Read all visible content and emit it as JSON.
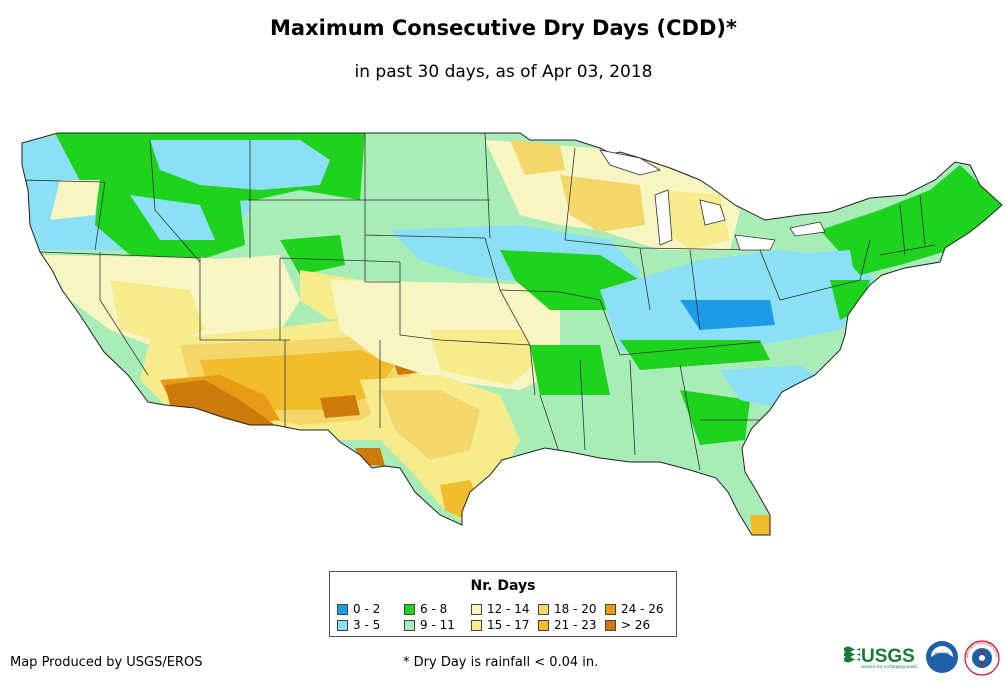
{
  "title": "Maximum Consecutive Dry Days (CDD)*",
  "subtitle": "in past 30 days, as of Apr 03, 2018",
  "legend": {
    "title": "Nr. Days",
    "items": [
      {
        "label": "0 - 2",
        "color": "#1e9be8"
      },
      {
        "label": "3 - 5",
        "color": "#8be0f5"
      },
      {
        "label": "6 - 8",
        "color": "#1ed21e"
      },
      {
        "label": "9 - 11",
        "color": "#a8edb8"
      },
      {
        "label": "12 - 14",
        "color": "#f7f6c3"
      },
      {
        "label": "15 - 17",
        "color": "#f6ec8c"
      },
      {
        "label": "18 - 20",
        "color": "#f4d76a"
      },
      {
        "label": "21 - 23",
        "color": "#f2bd2c"
      },
      {
        "label": "24 - 26",
        "color": "#e89c16"
      },
      {
        "label": "> 26",
        "color": "#cc7a0c"
      }
    ]
  },
  "footer": {
    "credit": "Map Produced by USGS/EROS",
    "note": "* Dry Day is rainfall < 0.04 in."
  },
  "logos": {
    "usgs": "USGS",
    "usgs_tagline": "science for a changing world",
    "noaa": "noaa",
    "nws": "NATIONAL WEATHER SERVICE"
  }
}
